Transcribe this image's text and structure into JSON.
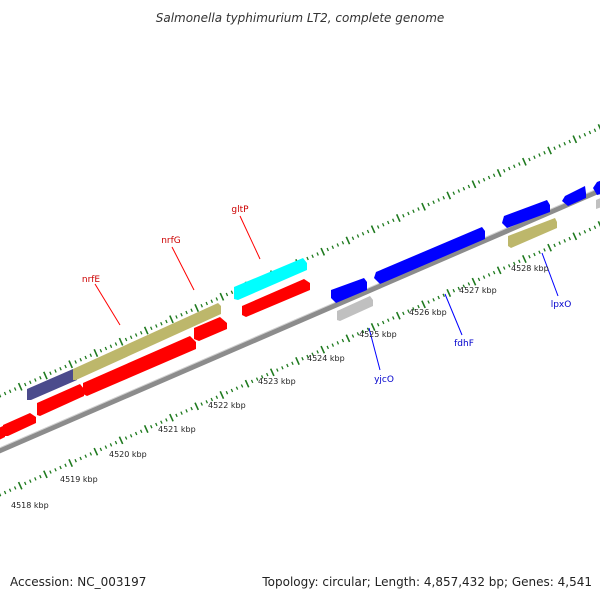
{
  "title": "Salmonella typhimurium LT2, complete genome",
  "accession": "Accession: NC_003197",
  "topology": "Topology: circular; Length: 4,857,432 bp; Genes: 4,541",
  "colors": {
    "forward_gene": "#ff0000",
    "reverse_gene": "#0000ff",
    "cyan_gene": "#00ffff",
    "olive_gene": "#bdb76b",
    "navy_gene": "#4b4b8c",
    "gray_gene": "#c0c0c0",
    "backbone": "#8c8c8c",
    "tick": "#1f7a1f",
    "forward_label": "#cc0000",
    "reverse_label": "#0000cc"
  },
  "kbp_labels": [
    {
      "kbp": 4518,
      "text": "4518 kbp"
    },
    {
      "kbp": 4519,
      "text": "4519 kbp"
    },
    {
      "kbp": 4520,
      "text": "4520 kbp"
    },
    {
      "kbp": 4521,
      "text": "4521 kbp"
    },
    {
      "kbp": 4522,
      "text": "4522 kbp"
    },
    {
      "kbp": 4523,
      "text": "4523 kbp"
    },
    {
      "kbp": 4524,
      "text": "4524 kbp"
    },
    {
      "kbp": 4525,
      "text": "4525 kbp"
    },
    {
      "kbp": 4526,
      "text": "4526 kbp"
    },
    {
      "kbp": 4527,
      "text": "4527 kbp"
    },
    {
      "kbp": 4528,
      "text": "4528 kbp"
    }
  ],
  "genes": [
    {
      "name": "nrfE",
      "strand": "forward"
    },
    {
      "name": "nrfG",
      "strand": "forward"
    },
    {
      "name": "gltP",
      "strand": "forward"
    },
    {
      "name": "yjcO",
      "strand": "reverse"
    },
    {
      "name": "fdhF",
      "strand": "reverse"
    },
    {
      "name": "lpxO",
      "strand": "reverse"
    }
  ]
}
